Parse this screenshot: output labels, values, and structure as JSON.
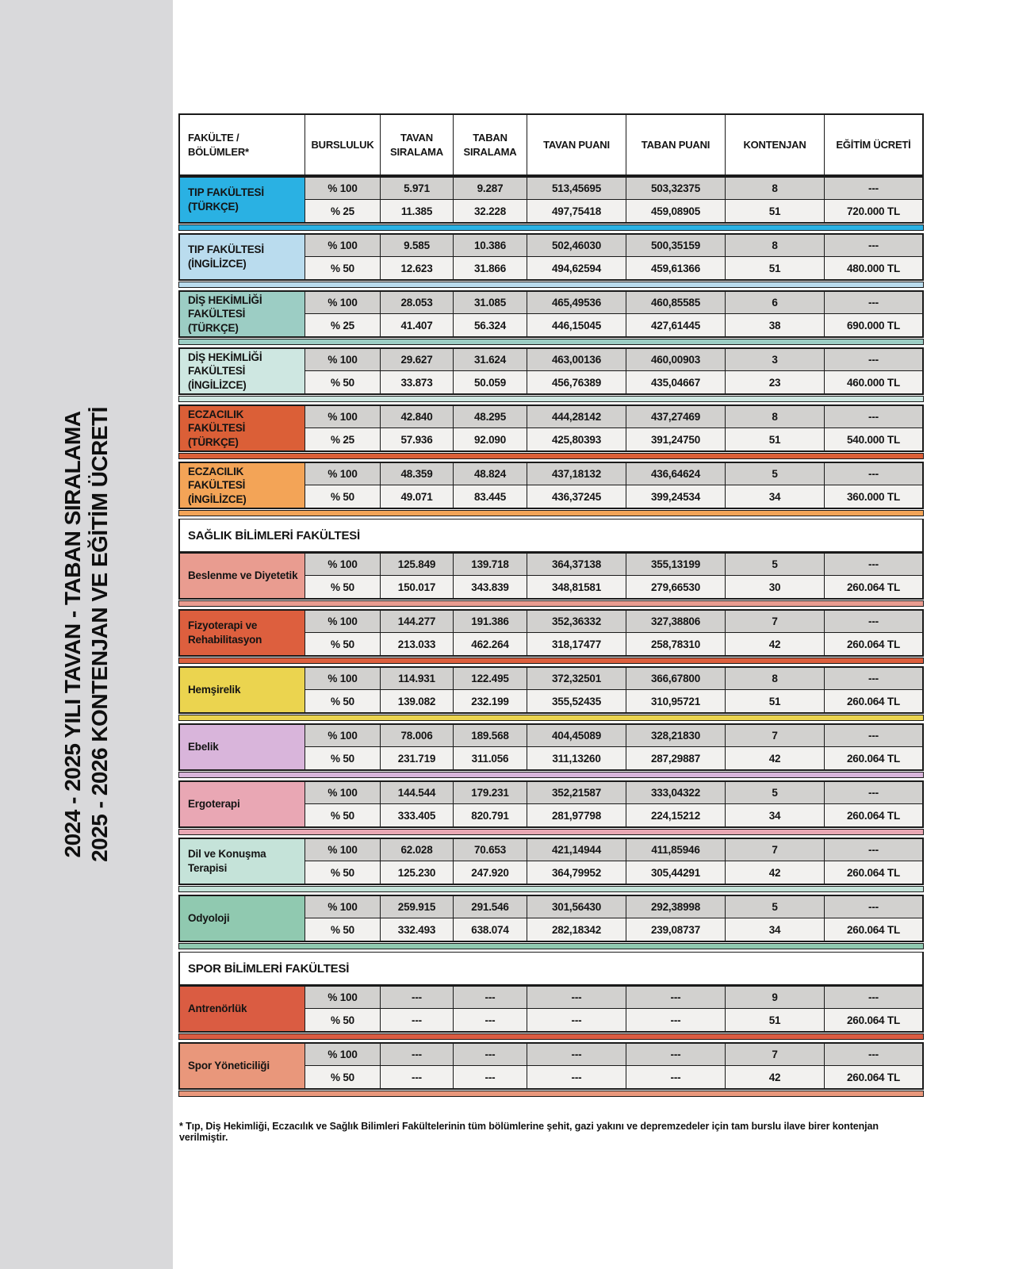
{
  "sidebar": {
    "title_line1": "2024 - 2025 YILI TAVAN - TABAN SIRALAMA",
    "title_line2": "2025 - 2026 KONTENJAN VE EĞİTİM ÜCRETİ"
  },
  "table": {
    "columns": [
      "FAKÜLTE / BÖLÜMLER*",
      "BURSLULUK",
      "TAVAN SIRALAMA",
      "TABAN SIRALAMA",
      "TAVAN PUANI",
      "TABAN PUANI",
      "KONTENJAN",
      "EĞİTİM ÜCRETİ"
    ],
    "groups": [
      {
        "type": "group",
        "label": "TIP FAKÜLTESİ (TÜRKÇE)",
        "color": "#2AB1E3",
        "rows": [
          [
            "% 100",
            "5.971",
            "9.287",
            "513,45695",
            "503,32375",
            "8",
            "---"
          ],
          [
            "% 25",
            "11.385",
            "32.228",
            "497,75418",
            "459,08905",
            "51",
            "720.000 TL"
          ]
        ]
      },
      {
        "type": "group",
        "label": "TIP FAKÜLTESİ (İNGİLİZCE)",
        "color": "#BADCEE",
        "rows": [
          [
            "% 100",
            "9.585",
            "10.386",
            "502,46030",
            "500,35159",
            "8",
            "---"
          ],
          [
            "% 50",
            "12.623",
            "31.866",
            "494,62594",
            "459,61366",
            "51",
            "480.000 TL"
          ]
        ]
      },
      {
        "type": "group",
        "label": "DİŞ HEKİMLİĞİ FAKÜLTESİ (TÜRKÇE)",
        "color": "#9CCDC4",
        "rows": [
          [
            "% 100",
            "28.053",
            "31.085",
            "465,49536",
            "460,85585",
            "6",
            "---"
          ],
          [
            "% 25",
            "41.407",
            "56.324",
            "446,15045",
            "427,61445",
            "38",
            "690.000 TL"
          ]
        ]
      },
      {
        "type": "group",
        "label": "DİŞ HEKİMLİĞİ FAKÜLTESİ (İNGİLİZCE)",
        "color": "#CEE7E1",
        "rows": [
          [
            "% 100",
            "29.627",
            "31.624",
            "463,00136",
            "460,00903",
            "3",
            "---"
          ],
          [
            "% 50",
            "33.873",
            "50.059",
            "456,76389",
            "435,04667",
            "23",
            "460.000 TL"
          ]
        ]
      },
      {
        "type": "group",
        "label": "ECZACILIK FAKÜLTESİ (TÜRKÇE)",
        "color": "#DB5F37",
        "rows": [
          [
            "% 100",
            "42.840",
            "48.295",
            "444,28142",
            "437,27469",
            "8",
            "---"
          ],
          [
            "% 25",
            "57.936",
            "92.090",
            "425,80393",
            "391,24750",
            "51",
            "540.000 TL"
          ]
        ]
      },
      {
        "type": "group",
        "label": "ECZACILIK FAKÜLTESİ (İNGİLİZCE)",
        "color": "#F3A457",
        "rows": [
          [
            "% 100",
            "48.359",
            "48.824",
            "437,18132",
            "436,64624",
            "5",
            "---"
          ],
          [
            "% 50",
            "49.071",
            "83.445",
            "436,37245",
            "399,24534",
            "34",
            "360.000 TL"
          ]
        ]
      },
      {
        "type": "section",
        "label": "SAĞLIK BİLİMLERİ FAKÜLTESİ"
      },
      {
        "type": "group",
        "label": "Beslenme ve Diyetetik",
        "color": "#E99C90",
        "rows": [
          [
            "% 100",
            "125.849",
            "139.718",
            "364,37138",
            "355,13199",
            "5",
            "---"
          ],
          [
            "% 50",
            "150.017",
            "343.839",
            "348,81581",
            "279,66530",
            "30",
            "260.064 TL"
          ]
        ]
      },
      {
        "type": "group",
        "label": "Fizyoterapi ve Rehabilitasyon",
        "color": "#DD5F3E",
        "rows": [
          [
            "% 100",
            "144.277",
            "191.386",
            "352,36332",
            "327,38806",
            "7",
            "---"
          ],
          [
            "% 50",
            "213.033",
            "462.264",
            "318,17477",
            "258,78310",
            "42",
            "260.064 TL"
          ]
        ]
      },
      {
        "type": "group",
        "label": "Hemşirelik",
        "color": "#EBD44F",
        "rows": [
          [
            "% 100",
            "114.931",
            "122.495",
            "372,32501",
            "366,67800",
            "8",
            "---"
          ],
          [
            "% 50",
            "139.082",
            "232.199",
            "355,52435",
            "310,95721",
            "51",
            "260.064 TL"
          ]
        ]
      },
      {
        "type": "group",
        "label": "Ebelik",
        "color": "#D9B5DB",
        "rows": [
          [
            "% 100",
            "78.006",
            "189.568",
            "404,45089",
            "328,21830",
            "7",
            "---"
          ],
          [
            "% 50",
            "231.719",
            "311.056",
            "311,13260",
            "287,29887",
            "42",
            "260.064 TL"
          ]
        ]
      },
      {
        "type": "group",
        "label": "Ergoterapi",
        "color": "#E9A7B4",
        "rows": [
          [
            "% 100",
            "144.544",
            "179.231",
            "352,21587",
            "333,04322",
            "5",
            "---"
          ],
          [
            "% 50",
            "333.405",
            "820.791",
            "281,97798",
            "224,15212",
            "34",
            "260.064 TL"
          ]
        ]
      },
      {
        "type": "group",
        "label": "Dil ve Konuşma Terapisi",
        "color": "#C5E3D9",
        "rows": [
          [
            "% 100",
            "62.028",
            "70.653",
            "421,14944",
            "411,85946",
            "7",
            "---"
          ],
          [
            "% 50",
            "125.230",
            "247.920",
            "364,79952",
            "305,44291",
            "42",
            "260.064 TL"
          ]
        ]
      },
      {
        "type": "group",
        "label": "Odyoloji",
        "color": "#90C9B0",
        "rows": [
          [
            "% 100",
            "259.915",
            "291.546",
            "301,56430",
            "292,38998",
            "5",
            "---"
          ],
          [
            "% 50",
            "332.493",
            "638.074",
            "282,18342",
            "239,08737",
            "34",
            "260.064 TL"
          ]
        ]
      },
      {
        "type": "section",
        "label": "SPOR BİLİMLERİ FAKÜLTESİ"
      },
      {
        "type": "group",
        "label": "Antrenörlük",
        "color": "#DA5C42",
        "rows": [
          [
            "% 100",
            "---",
            "---",
            "---",
            "---",
            "9",
            "---"
          ],
          [
            "% 50",
            "---",
            "---",
            "---",
            "---",
            "51",
            "260.064 TL"
          ]
        ]
      },
      {
        "type": "group",
        "label": "Spor Yöneticiliği",
        "color": "#E9977B",
        "rows": [
          [
            "% 100",
            "---",
            "---",
            "---",
            "---",
            "7",
            "---"
          ],
          [
            "% 50",
            "---",
            "---",
            "---",
            "---",
            "42",
            "260.064 TL"
          ]
        ]
      }
    ]
  },
  "footnote": "* Tıp, Diş Hekimliği, Eczacılık ve Sağlık Bilimleri Fakültelerinin tüm bölümlerine şehit, gazi yakını ve depremzedeler için tam burslu ilave birer kontenjan verilmiştir."
}
